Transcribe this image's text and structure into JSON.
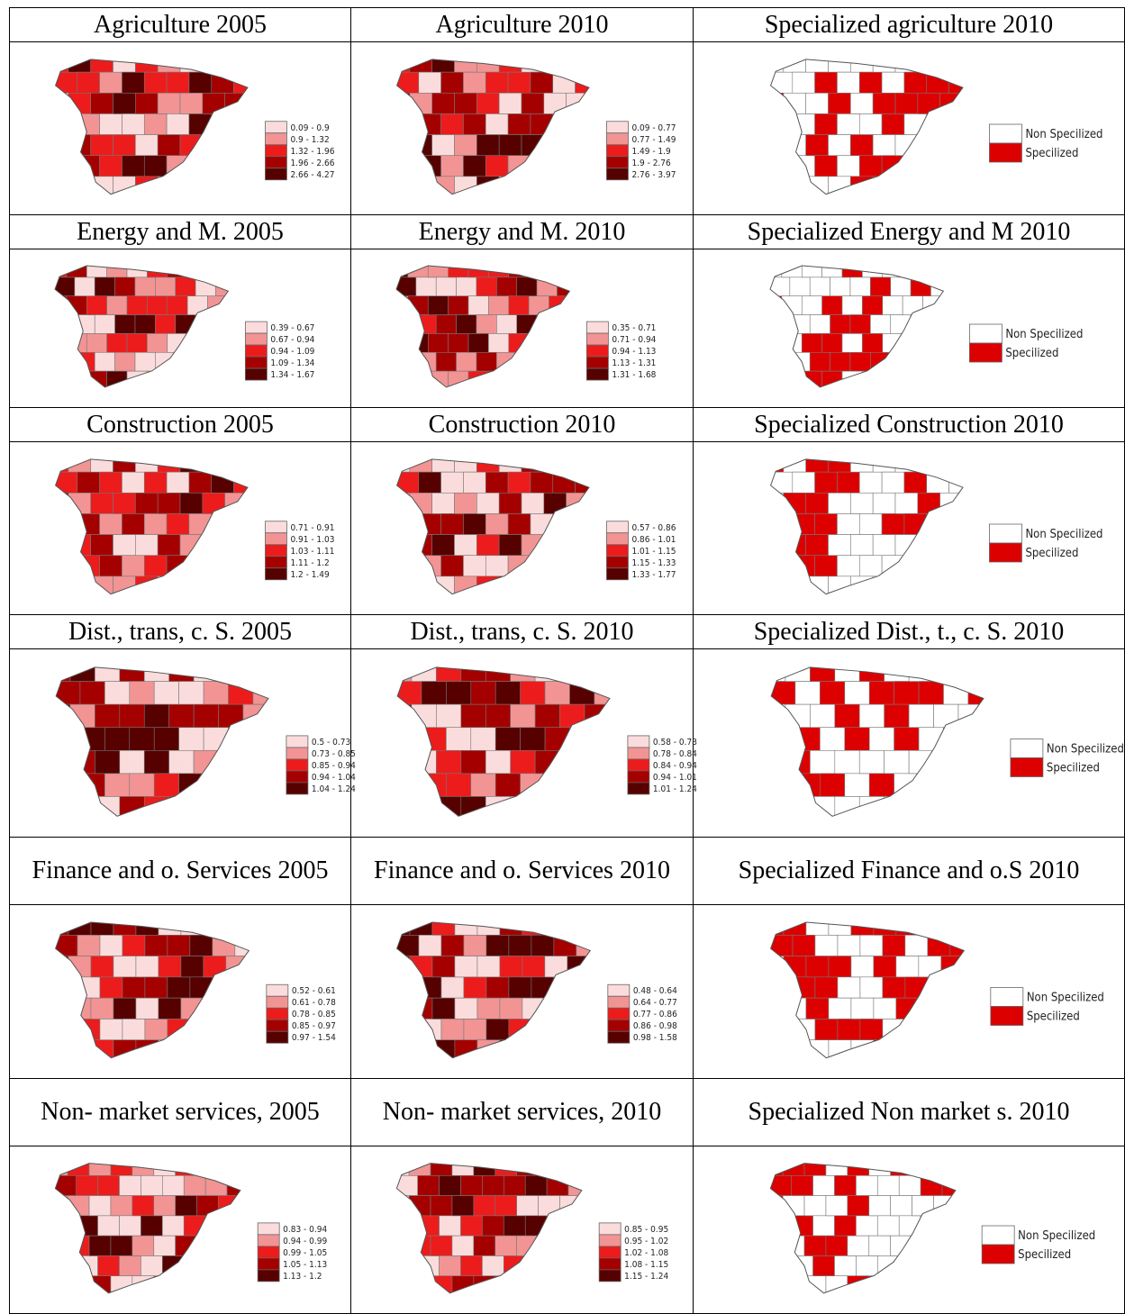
{
  "table": {
    "rows": [
      {
        "titles": [
          "Agriculture 2005",
          "Agriculture 2010",
          "Specialized agriculture 2010"
        ],
        "legends": [
          [
            "0.09 - 0.9",
            "0.9 - 1.32",
            "1.32 - 1.96",
            "1.96 - 2.66",
            "2.66 - 4.27"
          ],
          [
            "0.09 - 0.77",
            "0.77 - 1.49",
            "1.49 - 1.9",
            "1.9 - 2.76",
            "2.76 - 3.97"
          ],
          [
            "Non Specilized",
            "Specilized"
          ]
        ]
      },
      {
        "titles": [
          "Energy and M. 2005",
          "Energy and M. 2010",
          "Specialized Energy and M 2010"
        ],
        "legends": [
          [
            "0.39 - 0.67",
            "0.67 - 0.94",
            "0.94 - 1.09",
            "1.09 - 1.34",
            "1.34 - 1.67"
          ],
          [
            "0.35 - 0.71",
            "0.71 - 0.94",
            "0.94 - 1.13",
            "1.13 - 1.31",
            "1.31 - 1.68"
          ],
          [
            "Non Specilized",
            "Specilized"
          ]
        ]
      },
      {
        "titles": [
          "Construction 2005",
          "Construction  2010",
          "Specialized Construction 2010"
        ],
        "legends": [
          [
            "0.71 - 0.91",
            "0.91 - 1.03",
            "1.03 - 1.11",
            "1.11 - 1.2",
            "1.2 - 1.49"
          ],
          [
            "0.57 - 0.86",
            "0.86 - 1.01",
            "1.01 - 1.15",
            "1.15 - 1.33",
            "1.33 - 1.77"
          ],
          [
            "Non Specilized",
            "Specilized"
          ]
        ]
      },
      {
        "titles": [
          "Dist., trans, c. S. 2005",
          "Dist., trans, c. S. 2010",
          "Specialized  Dist., t., c. S. 2010"
        ],
        "legends": [
          [
            "0.5 - 0.73",
            "0.73 - 0.85",
            "0.85 - 0.94",
            "0.94 - 1.04",
            "1.04 - 1.24"
          ],
          [
            "0.58 - 0.78",
            "0.78 - 0.84",
            "0.84 - 0.94",
            "0.94 - 1.01",
            "1.01 - 1.24"
          ],
          [
            "Non Specilized",
            "Specilized"
          ]
        ]
      },
      {
        "titles": [
          "Finance and o. Services 2005",
          "Finance and o. Services 2010",
          "Specialized Finance and o.S 2010"
        ],
        "legends": [
          [
            "0.52 - 0.61",
            "0.61 - 0.78",
            "0.78 - 0.85",
            "0.85 - 0.97",
            "0.97 - 1.54"
          ],
          [
            "0.48 - 0.64",
            "0.64 - 0.77",
            "0.77 - 0.86",
            "0.86 - 0.98",
            "0.98 - 1.58"
          ],
          [
            "Non Specilized",
            "Specilized"
          ]
        ]
      },
      {
        "titles": [
          "Non- market services, 2005",
          "Non- market services, 2010",
          "Specialized Non market s. 2010"
        ],
        "legends": [
          [
            "0.83 - 0.94",
            "0.94 - 0.99",
            "0.99 - 1.05",
            "1.05 - 1.13",
            "1.13 - 1.2"
          ],
          [
            "0.85 - 0.95",
            "0.95 - 1.02",
            "1.02 - 1.08",
            "1.08 - 1.15",
            "1.15 - 1.24"
          ],
          [
            "Non Specilized",
            "Specilized"
          ]
        ]
      }
    ]
  }
}
